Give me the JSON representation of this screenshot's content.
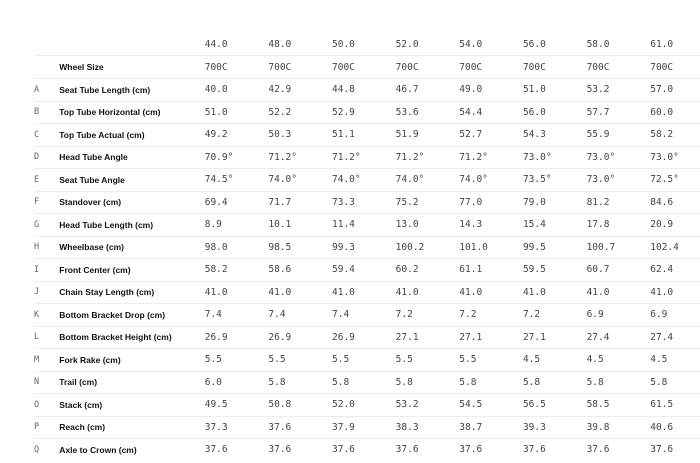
{
  "sizes": [
    "44.0",
    "48.0",
    "50.0",
    "52.0",
    "54.0",
    "56.0",
    "58.0",
    "61.0"
  ],
  "rows": [
    {
      "letter": "",
      "label": "Wheel Size",
      "values": [
        "700C",
        "700C",
        "700C",
        "700C",
        "700C",
        "700C",
        "700C",
        "700C"
      ]
    },
    {
      "letter": "A",
      "label": "Seat Tube Length (cm)",
      "values": [
        "40.0",
        "42.9",
        "44.8",
        "46.7",
        "49.0",
        "51.0",
        "53.2",
        "57.0"
      ]
    },
    {
      "letter": "B",
      "label": "Top Tube Horizontal (cm)",
      "values": [
        "51.0",
        "52.2",
        "52.9",
        "53.6",
        "54.4",
        "56.0",
        "57.7",
        "60.0"
      ]
    },
    {
      "letter": "C",
      "label": "Top Tube Actual (cm)",
      "values": [
        "49.2",
        "50.3",
        "51.1",
        "51.9",
        "52.7",
        "54.3",
        "55.9",
        "58.2"
      ]
    },
    {
      "letter": "D",
      "label": "Head Tube Angle",
      "values": [
        "70.9°",
        "71.2°",
        "71.2°",
        "71.2°",
        "71.2°",
        "73.0°",
        "73.0°",
        "73.0°"
      ]
    },
    {
      "letter": "E",
      "label": "Seat Tube Angle",
      "values": [
        "74.5°",
        "74.0°",
        "74.0°",
        "74.0°",
        "74.0°",
        "73.5°",
        "73.0°",
        "72.5°"
      ]
    },
    {
      "letter": "F",
      "label": "Standover (cm)",
      "values": [
        "69.4",
        "71.7",
        "73.3",
        "75.2",
        "77.0",
        "79.0",
        "81.2",
        "84.6"
      ]
    },
    {
      "letter": "G",
      "label": "Head Tube Length (cm)",
      "values": [
        "8.9",
        "10.1",
        "11.4",
        "13.0",
        "14.3",
        "15.4",
        "17.8",
        "20.9"
      ]
    },
    {
      "letter": "H",
      "label": "Wheelbase (cm)",
      "values": [
        "98.0",
        "98.5",
        "99.3",
        "100.2",
        "101.0",
        "99.5",
        "100.7",
        "102.4"
      ]
    },
    {
      "letter": "I",
      "label": "Front Center (cm)",
      "values": [
        "58.2",
        "58.6",
        "59.4",
        "60.2",
        "61.1",
        "59.5",
        "60.7",
        "62.4"
      ]
    },
    {
      "letter": "J",
      "label": "Chain Stay Length (cm)",
      "values": [
        "41.0",
        "41.0",
        "41.0",
        "41.0",
        "41.0",
        "41.0",
        "41.0",
        "41.0"
      ]
    },
    {
      "letter": "K",
      "label": "Bottom Bracket Drop (cm)",
      "values": [
        "7.4",
        "7.4",
        "7.4",
        "7.2",
        "7.2",
        "7.2",
        "6.9",
        "6.9"
      ]
    },
    {
      "letter": "L",
      "label": "Bottom Bracket Height (cm)",
      "values": [
        "26.9",
        "26.9",
        "26.9",
        "27.1",
        "27.1",
        "27.1",
        "27.4",
        "27.4"
      ]
    },
    {
      "letter": "M",
      "label": "Fork Rake (cm)",
      "values": [
        "5.5",
        "5.5",
        "5.5",
        "5.5",
        "5.5",
        "4.5",
        "4.5",
        "4.5"
      ]
    },
    {
      "letter": "N",
      "label": "Trail (cm)",
      "values": [
        "6.0",
        "5.8",
        "5.8",
        "5.8",
        "5.8",
        "5.8",
        "5.8",
        "5.8"
      ]
    },
    {
      "letter": "O",
      "label": "Stack (cm)",
      "values": [
        "49.5",
        "50.8",
        "52.0",
        "53.2",
        "54.5",
        "56.5",
        "58.5",
        "61.5"
      ]
    },
    {
      "letter": "P",
      "label": "Reach (cm)",
      "values": [
        "37.3",
        "37.6",
        "37.9",
        "38.3",
        "38.7",
        "39.3",
        "39.8",
        "40.6"
      ]
    },
    {
      "letter": "Q",
      "label": "Axle to Crown (cm)",
      "values": [
        "37.6",
        "37.6",
        "37.6",
        "37.6",
        "37.6",
        "37.6",
        "37.6",
        "37.6"
      ]
    }
  ]
}
